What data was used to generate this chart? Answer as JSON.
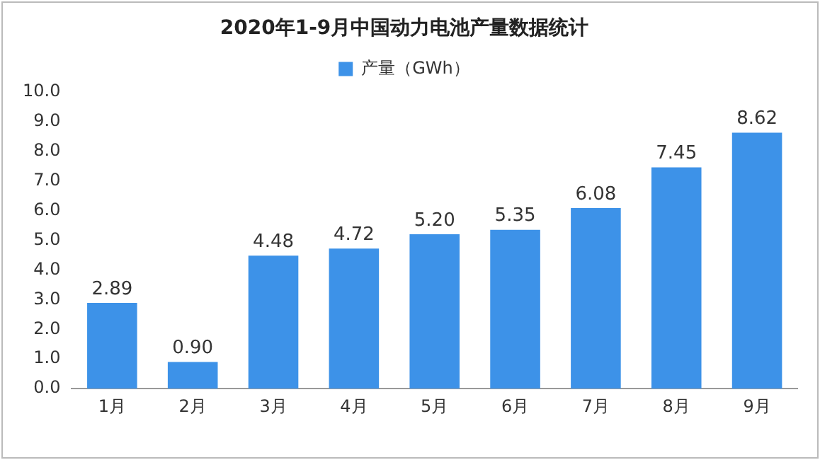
{
  "chart_data": {
    "type": "bar",
    "title": "2020年1-9月中国动力电池产量数据统计",
    "categories": [
      "1月",
      "2月",
      "3月",
      "4月",
      "5月",
      "6月",
      "7月",
      "8月",
      "9月"
    ],
    "series": [
      {
        "name": "产量（GWh）",
        "color": "#3d92e8",
        "values": [
          2.89,
          0.9,
          4.48,
          4.72,
          5.2,
          5.35,
          6.08,
          7.45,
          8.62
        ],
        "value_labels": [
          "2.89",
          "0.90",
          "4.48",
          "4.72",
          "5.20",
          "5.35",
          "6.08",
          "7.45",
          "8.62"
        ]
      }
    ],
    "ylim": [
      0,
      10
    ],
    "yticks": [
      {
        "value": 0,
        "label": "0.0"
      },
      {
        "value": 1,
        "label": "1.0"
      },
      {
        "value": 2,
        "label": "2.0"
      },
      {
        "value": 3,
        "label": "3.0"
      },
      {
        "value": 4,
        "label": "4.0"
      },
      {
        "value": 5,
        "label": "5.0"
      },
      {
        "value": 6,
        "label": "6.0"
      },
      {
        "value": 7,
        "label": "7.0"
      },
      {
        "value": 8,
        "label": "8.0"
      },
      {
        "value": 9,
        "label": "9.0"
      },
      {
        "value": 10,
        "label": "10.0"
      }
    ],
    "grid": false,
    "legend": "top"
  }
}
